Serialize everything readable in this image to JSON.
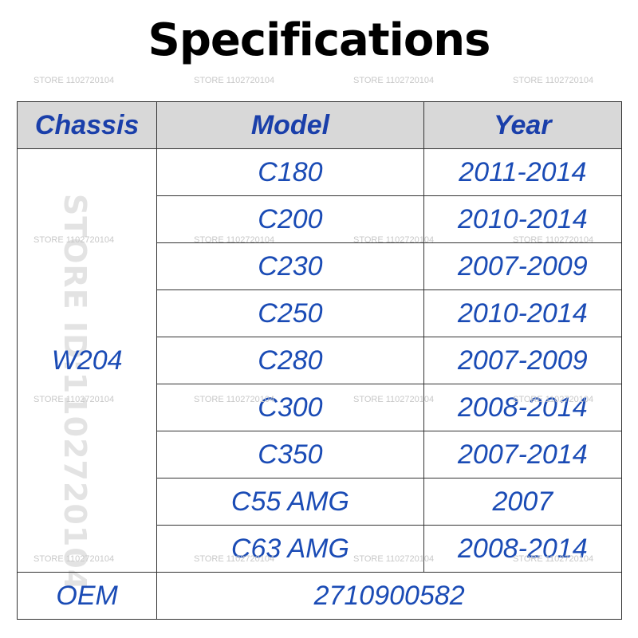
{
  "title": "Specifications",
  "watermark": "STORE 1102720104",
  "watermark_vertical": "STORE ID:1102720104",
  "headers": {
    "chassis": "Chassis",
    "model": "Model",
    "year": "Year"
  },
  "chassis": "W204",
  "rows": [
    {
      "model": "C180",
      "year": "2011-2014"
    },
    {
      "model": "C200",
      "year": "2010-2014"
    },
    {
      "model": "C230",
      "year": "2007-2009"
    },
    {
      "model": "C250",
      "year": "2010-2014"
    },
    {
      "model": "C280",
      "year": "2007-2009"
    },
    {
      "model": "C300",
      "year": "2008-2014"
    },
    {
      "model": "C350",
      "year": "2007-2014"
    },
    {
      "model": "C55 AMG",
      "year": "2007"
    },
    {
      "model": "C63 AMG",
      "year": "2008-2014"
    }
  ],
  "oem": {
    "label": "OEM",
    "value": "2710900582"
  },
  "colors": {
    "text_blue": "#1a4bb5",
    "header_bg": "#d8d8d8"
  }
}
